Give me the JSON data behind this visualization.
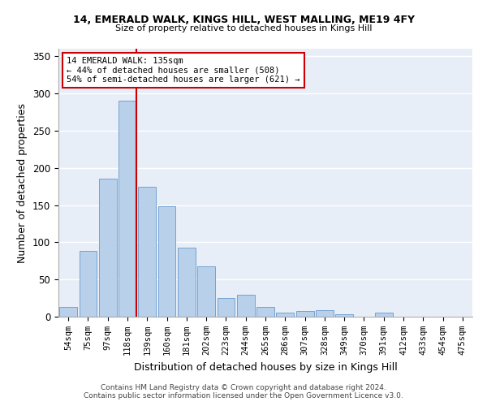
{
  "title1": "14, EMERALD WALK, KINGS HILL, WEST MALLING, ME19 4FY",
  "title2": "Size of property relative to detached houses in Kings Hill",
  "xlabel": "Distribution of detached houses by size in Kings Hill",
  "ylabel": "Number of detached properties",
  "bin_labels": [
    "54sqm",
    "75sqm",
    "97sqm",
    "118sqm",
    "139sqm",
    "160sqm",
    "181sqm",
    "202sqm",
    "223sqm",
    "244sqm",
    "265sqm",
    "286sqm",
    "307sqm",
    "328sqm",
    "349sqm",
    "370sqm",
    "391sqm",
    "412sqm",
    "433sqm",
    "454sqm",
    "475sqm"
  ],
  "bar_values": [
    13,
    88,
    185,
    290,
    175,
    148,
    93,
    68,
    25,
    30,
    13,
    6,
    8,
    9,
    3,
    0,
    6,
    0,
    0,
    0,
    0
  ],
  "bar_color": "#b8d0ea",
  "bar_edge_color": "#6699cc",
  "marker_label": "14 EMERALD WALK: 135sqm",
  "annotation_line1": "← 44% of detached houses are smaller (508)",
  "annotation_line2": "54% of semi-detached houses are larger (621) →",
  "vline_color": "#cc0000",
  "background_color": "#e8eef8",
  "grid_color": "#ffffff",
  "footnote1": "Contains HM Land Registry data © Crown copyright and database right 2024.",
  "footnote2": "Contains public sector information licensed under the Open Government Licence v3.0.",
  "ylim": [
    0,
    360
  ],
  "yticks": [
    0,
    50,
    100,
    150,
    200,
    250,
    300,
    350
  ]
}
